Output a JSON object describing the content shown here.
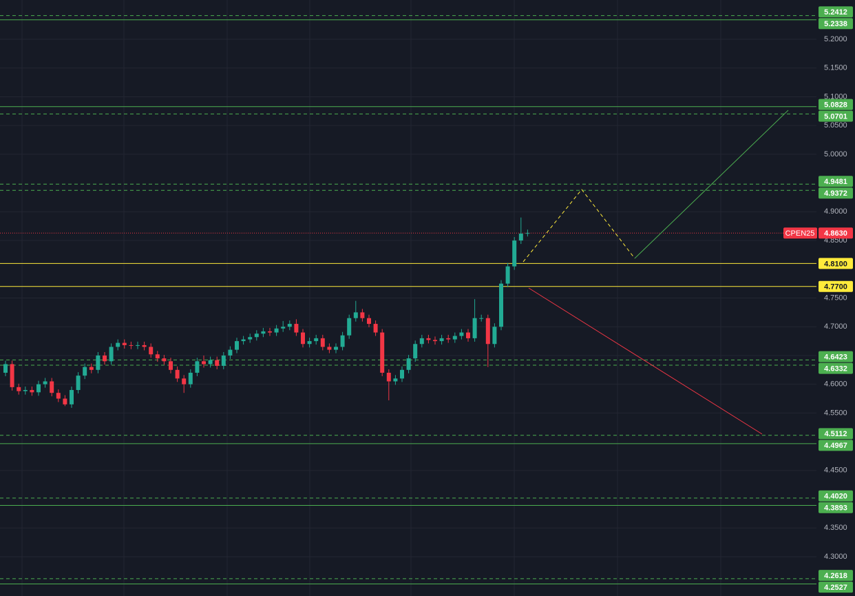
{
  "chart_data": {
    "type": "candlestick",
    "up_color": "#22ab94",
    "down_color": "#f23645",
    "ylim": [
      4.2317,
      5.2683
    ],
    "grid": true,
    "yticks": [
      {
        "value": 5.2,
        "label": "5.2000"
      },
      {
        "value": 5.15,
        "label": "5.1500"
      },
      {
        "value": 5.1,
        "label": "5.1000"
      },
      {
        "value": 5.05,
        "label": "5.0500"
      },
      {
        "value": 5.0,
        "label": "5.0000"
      },
      {
        "value": 4.9,
        "label": "4.9000"
      },
      {
        "value": 4.85,
        "label": "4.8500"
      },
      {
        "value": 4.75,
        "label": "4.7500"
      },
      {
        "value": 4.7,
        "label": "4.7000"
      },
      {
        "value": 4.65,
        "label": "4.6500"
      },
      {
        "value": 4.6,
        "label": "4.6000"
      },
      {
        "value": 4.55,
        "label": "4.5500"
      },
      {
        "value": 4.45,
        "label": "4.4500"
      },
      {
        "value": 4.35,
        "label": "4.3500"
      },
      {
        "value": 4.3,
        "label": "4.3000"
      }
    ],
    "open": [
      4.62,
      4.635,
      4.595,
      4.588,
      4.59,
      4.586,
      4.6,
      4.605,
      4.585,
      4.575,
      4.565,
      4.59,
      4.615,
      4.63,
      4.625,
      4.65,
      4.64,
      4.665,
      4.672,
      4.668,
      4.667,
      4.668,
      4.665,
      4.652,
      4.645,
      4.64,
      4.625,
      4.61,
      4.6,
      4.62,
      4.64,
      4.635,
      4.642,
      4.632,
      4.65,
      4.66,
      4.675,
      4.678,
      4.682,
      4.688,
      4.692,
      4.69,
      4.697,
      4.7,
      4.705,
      4.69,
      4.67,
      4.675,
      4.68,
      4.665,
      4.66,
      4.665,
      4.685,
      4.715,
      4.725,
      4.715,
      4.705,
      4.69,
      4.62,
      4.605,
      4.61,
      4.625,
      4.645,
      4.67,
      4.68,
      4.677,
      4.675,
      4.68,
      4.678,
      4.684,
      4.69,
      4.68,
      4.715,
      4.715,
      4.67,
      4.7,
      4.775,
      4.805,
      4.85,
      4.862
    ],
    "high": [
      4.641,
      4.641,
      4.601,
      4.596,
      4.596,
      4.606,
      4.611,
      4.611,
      4.591,
      4.581,
      4.596,
      4.621,
      4.636,
      4.636,
      4.656,
      4.656,
      4.671,
      4.678,
      4.678,
      4.674,
      4.674,
      4.674,
      4.671,
      4.658,
      4.651,
      4.646,
      4.631,
      4.616,
      4.626,
      4.646,
      4.65,
      4.648,
      4.648,
      4.656,
      4.666,
      4.681,
      4.684,
      4.688,
      4.694,
      4.698,
      4.698,
      4.703,
      4.71,
      4.711,
      4.713,
      4.696,
      4.681,
      4.686,
      4.686,
      4.671,
      4.671,
      4.691,
      4.721,
      4.745,
      4.731,
      4.721,
      4.711,
      4.696,
      4.626,
      4.616,
      4.631,
      4.651,
      4.676,
      4.686,
      4.686,
      4.683,
      4.686,
      4.686,
      4.69,
      4.696,
      4.696,
      4.748,
      4.721,
      4.721,
      4.706,
      4.781,
      4.811,
      4.856,
      4.89,
      4.869
    ],
    "low": [
      4.614,
      4.589,
      4.582,
      4.582,
      4.58,
      4.58,
      4.594,
      4.579,
      4.569,
      4.562,
      4.559,
      4.584,
      4.609,
      4.619,
      4.619,
      4.634,
      4.634,
      4.659,
      4.662,
      4.661,
      4.661,
      4.659,
      4.646,
      4.639,
      4.634,
      4.619,
      4.604,
      4.585,
      4.594,
      4.614,
      4.629,
      4.629,
      4.626,
      4.626,
      4.644,
      4.654,
      4.669,
      4.672,
      4.676,
      4.682,
      4.684,
      4.684,
      4.691,
      4.694,
      4.684,
      4.664,
      4.664,
      4.669,
      4.659,
      4.654,
      4.654,
      4.659,
      4.679,
      4.709,
      4.709,
      4.699,
      4.684,
      4.614,
      4.572,
      4.599,
      4.604,
      4.619,
      4.639,
      4.664,
      4.671,
      4.669,
      4.669,
      4.672,
      4.672,
      4.678,
      4.674,
      4.674,
      4.709,
      4.63,
      4.664,
      4.694,
      4.769,
      4.799,
      4.844,
      4.857
    ],
    "close": [
      4.635,
      4.595,
      4.588,
      4.59,
      4.586,
      4.6,
      4.605,
      4.585,
      4.575,
      4.565,
      4.59,
      4.615,
      4.63,
      4.625,
      4.65,
      4.64,
      4.665,
      4.672,
      4.668,
      4.667,
      4.668,
      4.665,
      4.652,
      4.645,
      4.64,
      4.625,
      4.61,
      4.6,
      4.62,
      4.64,
      4.635,
      4.642,
      4.632,
      4.65,
      4.66,
      4.675,
      4.678,
      4.682,
      4.688,
      4.692,
      4.69,
      4.697,
      4.7,
      4.705,
      4.69,
      4.67,
      4.675,
      4.68,
      4.665,
      4.66,
      4.665,
      4.685,
      4.715,
      4.725,
      4.715,
      4.705,
      4.69,
      4.62,
      4.605,
      4.61,
      4.625,
      4.645,
      4.67,
      4.68,
      4.677,
      4.675,
      4.68,
      4.678,
      4.684,
      4.69,
      4.68,
      4.715,
      4.715,
      4.67,
      4.7,
      4.775,
      4.805,
      4.85,
      4.862,
      4.863
    ],
    "levels": [
      {
        "value": 5.2412,
        "style": "dashed",
        "color": "#4caf50"
      },
      {
        "value": 5.2338,
        "style": "solid",
        "color": "#4caf50"
      },
      {
        "value": 5.0828,
        "style": "solid",
        "color": "#4caf50"
      },
      {
        "value": 5.0701,
        "style": "dashed",
        "color": "#4caf50"
      },
      {
        "value": 4.9481,
        "style": "dashed",
        "color": "#4caf50"
      },
      {
        "value": 4.9372,
        "style": "dashed",
        "color": "#4caf50"
      },
      {
        "value": 4.81,
        "label": "4.8100",
        "style": "solid",
        "color": "#ffeb3b"
      },
      {
        "value": 4.77,
        "label": "4.7700",
        "style": "solid",
        "color": "#ffeb3b"
      },
      {
        "value": 4.6423,
        "style": "dashed",
        "color": "#4caf50"
      },
      {
        "value": 4.6332,
        "style": "dashed",
        "color": "#4caf50"
      },
      {
        "value": 4.5112,
        "style": "dashed",
        "color": "#4caf50"
      },
      {
        "value": 4.4967,
        "style": "solid",
        "color": "#4caf50"
      },
      {
        "value": 4.402,
        "label": "4.4020",
        "style": "dashed",
        "color": "#4caf50"
      },
      {
        "value": 4.3893,
        "style": "solid",
        "color": "#4caf50"
      },
      {
        "value": 4.2618,
        "style": "dashed",
        "color": "#4caf50"
      },
      {
        "value": 4.2527,
        "style": "solid",
        "color": "#4caf50"
      }
    ],
    "last_price": {
      "name": "CPEN25",
      "value": 4.863,
      "label": "4.8630",
      "color": "#f23645"
    }
  }
}
